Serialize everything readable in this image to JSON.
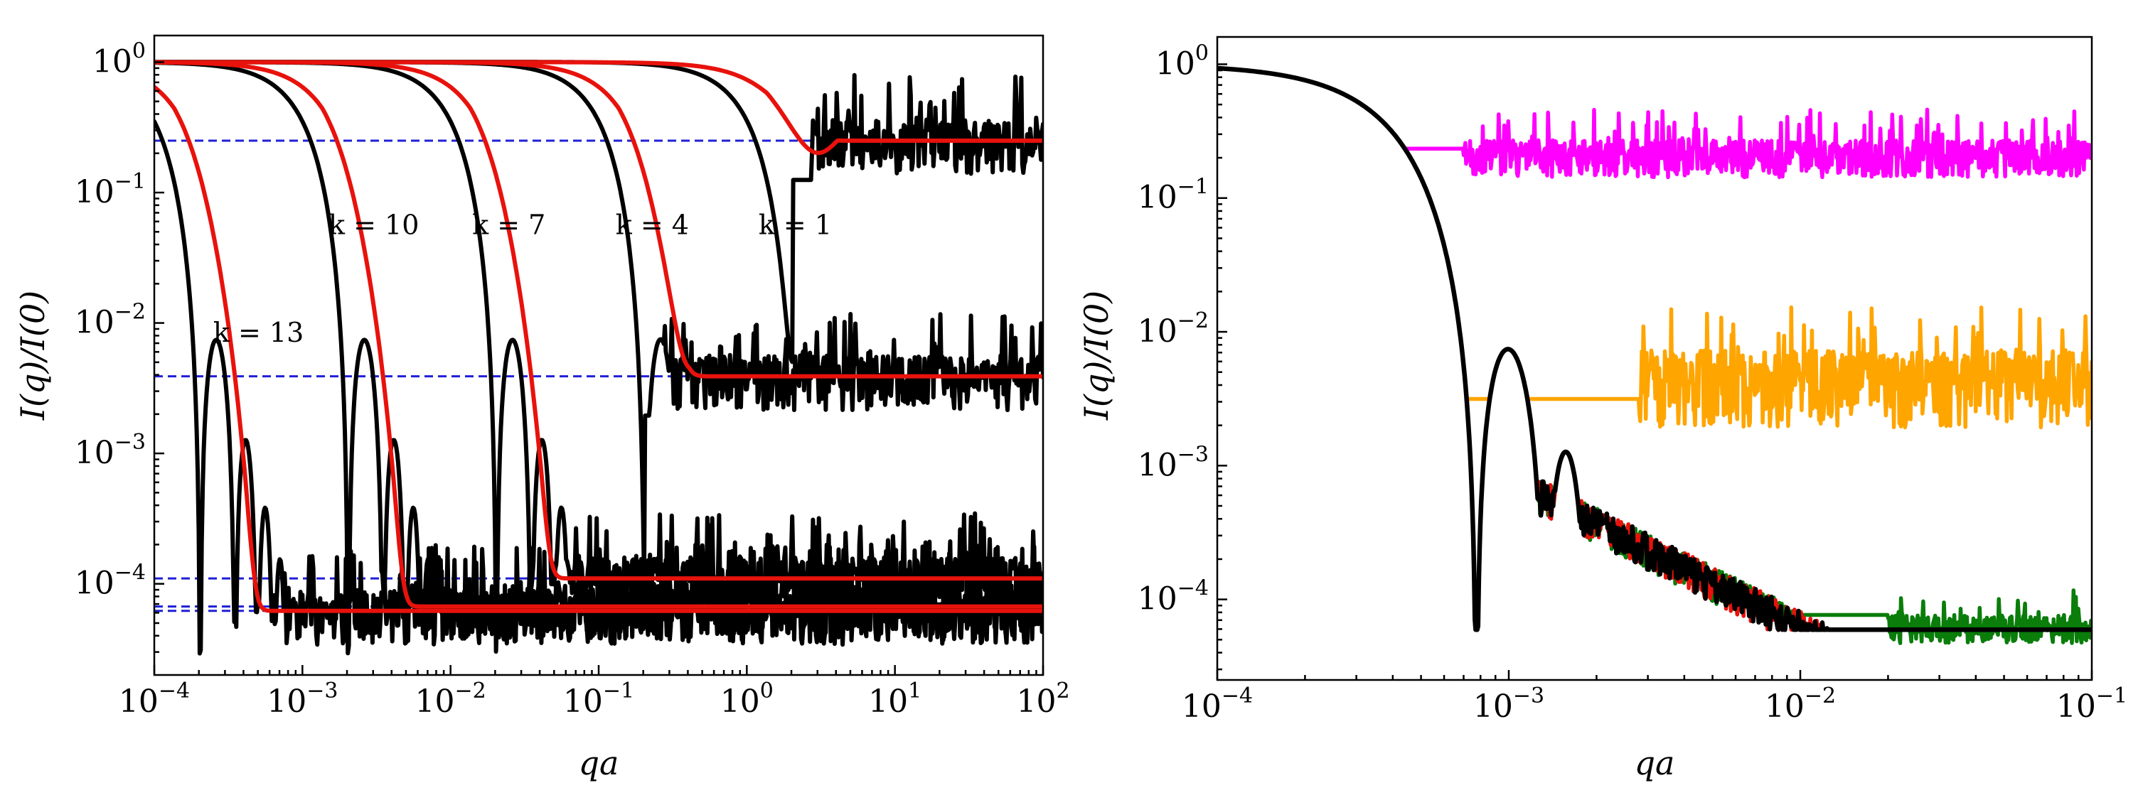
{
  "chart_data": [
    {
      "type": "line",
      "panel": "left",
      "xscale": "log",
      "yscale": "log",
      "xlim": [
        0.0001,
        100
      ],
      "ylim": [
        2e-05,
        1.6
      ],
      "xlabel": "qa",
      "ylabel": "I(q)/I(0)",
      "xticks": [
        {
          "base": "10",
          "exp": "−4",
          "value": 0.0001
        },
        {
          "base": "10",
          "exp": "−3",
          "value": 0.001
        },
        {
          "base": "10",
          "exp": "−2",
          "value": 0.01
        },
        {
          "base": "10",
          "exp": "−1",
          "value": 0.1
        },
        {
          "base": "10",
          "exp": "0",
          "value": 1
        },
        {
          "base": "10",
          "exp": "1",
          "value": 10
        },
        {
          "base": "10",
          "exp": "2",
          "value": 100
        }
      ],
      "yticks": [
        {
          "base": "10",
          "exp": "−4",
          "value": 0.0001
        },
        {
          "base": "10",
          "exp": "−3",
          "value": 0.001
        },
        {
          "base": "10",
          "exp": "−2",
          "value": 0.01
        },
        {
          "base": "10",
          "exp": "−1",
          "value": 0.1
        },
        {
          "base": "10",
          "exp": "0",
          "value": 1
        }
      ],
      "annotations": [
        {
          "text": "k = 1",
          "x": 1.2,
          "y": 0.048
        },
        {
          "text": "k = 4",
          "x": 0.13,
          "y": 0.048
        },
        {
          "text": "k = 7",
          "x": 0.014,
          "y": 0.048
        },
        {
          "text": "k = 10",
          "x": 0.0015,
          "y": 0.048
        },
        {
          "text": "k = 13",
          "x": 0.00025,
          "y": 0.0072
        }
      ],
      "hlines": [
        {
          "y": 0.25,
          "color": "#1f1fd6",
          "style": "dashed"
        },
        {
          "y": 0.0039,
          "color": "#1f1fd6",
          "style": "dashed"
        },
        {
          "y": 0.00011,
          "color": "#1f1fd6",
          "style": "dashed"
        },
        {
          "y": 6.7e-05,
          "color": "#1f1fd6",
          "style": "dashed"
        },
        {
          "y": 6.2e-05,
          "color": "#1f1fd6",
          "style": "dashed"
        }
      ],
      "series": [
        {
          "name": "k = 1 simulation",
          "k": 1,
          "color": "#000000",
          "kind": "sim",
          "scale": 1,
          "floor": 0.25
        },
        {
          "name": "k = 4 simulation",
          "k": 4,
          "color": "#000000",
          "kind": "sim",
          "scale": 0.1,
          "floor": 0.0039
        },
        {
          "name": "k = 7 simulation",
          "k": 7,
          "color": "#000000",
          "kind": "sim",
          "scale": 0.01,
          "floor": 0.00011
        },
        {
          "name": "k = 10 simulation",
          "k": 10,
          "color": "#000000",
          "kind": "sim",
          "scale": 0.001,
          "floor": 6.7e-05
        },
        {
          "name": "k = 13 simulation",
          "k": 13,
          "color": "#000000",
          "kind": "sim",
          "scale": 0.0001,
          "floor": 6.2e-05
        },
        {
          "name": "k = 1 model",
          "k": 1,
          "color": "#e8120c",
          "kind": "model",
          "scale": 1,
          "floor": 0.25
        },
        {
          "name": "k = 4 model",
          "k": 4,
          "color": "#e8120c",
          "kind": "model",
          "scale": 0.1,
          "floor": 0.0039
        },
        {
          "name": "k = 7 model",
          "k": 7,
          "color": "#e8120c",
          "kind": "model",
          "scale": 0.01,
          "floor": 0.00011
        },
        {
          "name": "k = 10 model",
          "k": 10,
          "color": "#e8120c",
          "kind": "model",
          "scale": 0.001,
          "floor": 6.7e-05
        },
        {
          "name": "k = 13 model",
          "k": 13,
          "color": "#e8120c",
          "kind": "model",
          "scale": 0.0001,
          "floor": 6.2e-05
        }
      ]
    },
    {
      "type": "line",
      "panel": "right",
      "xscale": "log",
      "yscale": "log",
      "xlim": [
        0.0001,
        0.1
      ],
      "ylim": [
        2.5e-05,
        1.6
      ],
      "xlabel": "qa",
      "ylabel": "I(q)/I(0)",
      "xticks": [
        {
          "base": "10",
          "exp": "−4",
          "value": 0.0001
        },
        {
          "base": "10",
          "exp": "−3",
          "value": 0.001
        },
        {
          "base": "10",
          "exp": "−2",
          "value": 0.01
        },
        {
          "base": "10",
          "exp": "−1",
          "value": 0.1
        }
      ],
      "yticks": [
        {
          "base": "10",
          "exp": "−4",
          "value": 0.0001
        },
        {
          "base": "10",
          "exp": "−3",
          "value": 0.001
        },
        {
          "base": "10",
          "exp": "−2",
          "value": 0.01
        },
        {
          "base": "10",
          "exp": "−1",
          "value": 0.1
        },
        {
          "base": "10",
          "exp": "0",
          "value": 1
        }
      ],
      "series": [
        {
          "name": "magenta",
          "color": "#ff00ff",
          "floor": 0.26,
          "cut": 0.0007,
          "noise": 0.35
        },
        {
          "name": "orange",
          "color": "#ffa500",
          "floor": 0.0035,
          "cut": 0.0028,
          "noise": 1.1
        },
        {
          "name": "green",
          "color": "#0a7d0a",
          "floor": 8.5e-05,
          "cut": 0.02,
          "noise": 0.25
        },
        {
          "name": "red",
          "color": "#e8120c",
          "floor": 6.6e-05,
          "cut": 1,
          "noise": 0.22
        },
        {
          "name": "black",
          "color": "#000000",
          "floor": 6.6e-05,
          "cut": 1,
          "noise": 0.22
        }
      ]
    }
  ]
}
